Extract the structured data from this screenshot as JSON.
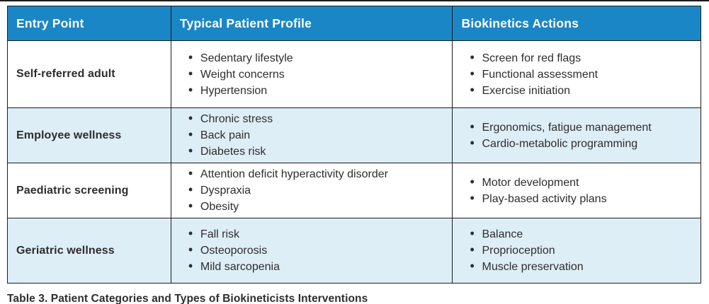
{
  "table": {
    "columns": [
      "Entry Point",
      "Typical Patient Profile",
      "Biokinetics Actions"
    ],
    "rows": [
      {
        "entry_point": "Self-referred adult",
        "profile": [
          "Sedentary lifestyle",
          "Weight concerns",
          "Hypertension"
        ],
        "actions": [
          "Screen for red flags",
          "Functional assessment",
          "Exercise initiation"
        ]
      },
      {
        "entry_point": "Employee wellness",
        "profile": [
          "Chronic stress",
          "Back pain",
          "Diabetes risk"
        ],
        "actions": [
          "Ergonomics, fatigue management",
          "Cardio-metabolic programming"
        ]
      },
      {
        "entry_point": "Paediatric screening",
        "profile": [
          "Attention deficit hyperactivity disorder",
          "Dyspraxia",
          "Obesity"
        ],
        "actions": [
          "Motor development",
          "Play-based activity plans"
        ]
      },
      {
        "entry_point": "Geriatric wellness",
        "profile": [
          "Fall risk",
          "Osteoporosis",
          "Mild sarcopenia"
        ],
        "actions": [
          "Balance",
          "Proprioception",
          "Muscle preservation"
        ]
      }
    ]
  },
  "caption": "Table 3. Patient Categories and Types of Biokineticists Interventions",
  "colors": {
    "header_bg": "#1b86c6",
    "header_text": "#ffffff",
    "alt_row_bg": "#ddeef7",
    "border": "#1c1c1c",
    "text": "#2e2d2f"
  }
}
